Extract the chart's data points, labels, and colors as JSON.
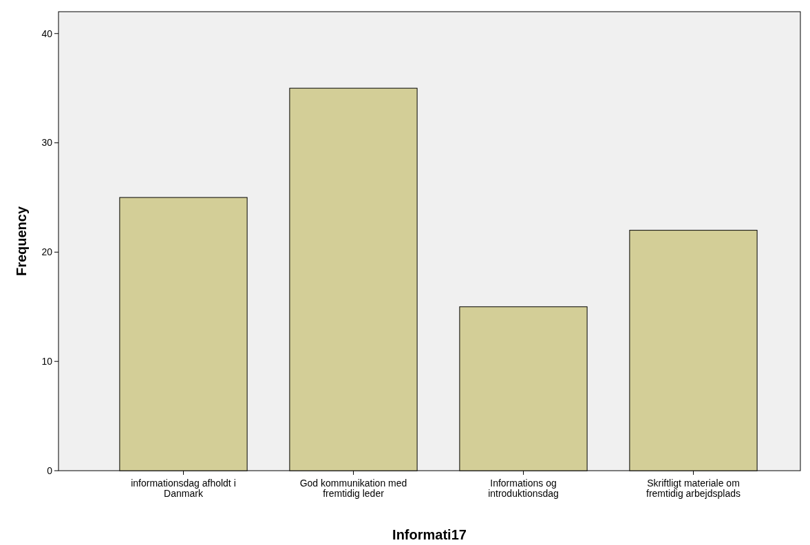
{
  "chart_data": {
    "type": "bar",
    "xlabel": "Informati17",
    "ylabel": "Frequency",
    "categories": [
      "informationsdag afholdt i Danmark",
      "God kommunikation med fremtidig leder",
      "Informations og introduktionsdag",
      "Skriftligt materiale om fremtidig arbejdsplads"
    ],
    "values": [
      25,
      35,
      15,
      22
    ],
    "color": "#d3ce97",
    "ylim": [
      0,
      42
    ],
    "yticks": [
      0,
      10,
      20,
      30,
      40
    ],
    "grid": false
  }
}
